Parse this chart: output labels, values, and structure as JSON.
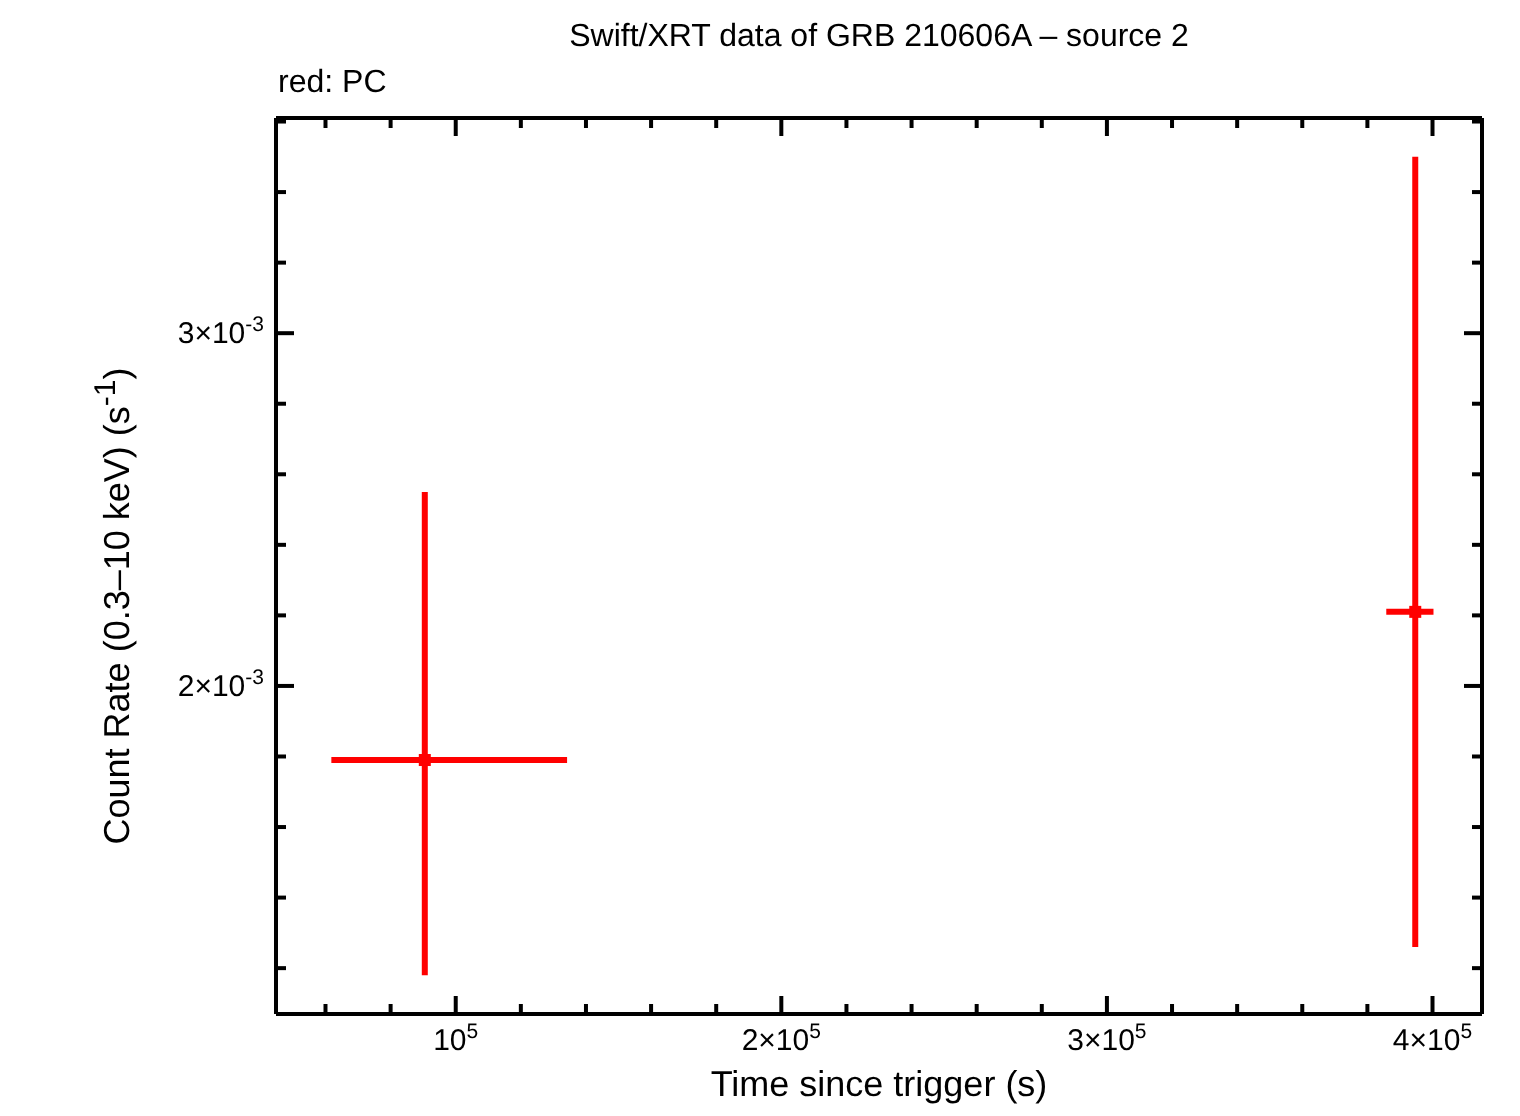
{
  "chart_data": {
    "type": "scatter",
    "title": "Swift/XRT data of GRB 210606A – source 2",
    "xlabel": "Time since trigger (s)",
    "ylabel": "Count Rate (0.3–10 keV) (s$^{-1}$)",
    "annotations": [
      "red: PC"
    ],
    "x": [
      90500,
      394700
    ],
    "series": [
      {
        "color": "#ff0000",
        "values": [
          0.00179,
          0.00221
        ],
        "errors": [
          [
            0.00118,
            0.00255
          ],
          [
            0.00126,
            0.0035
          ]
        ],
        "xerrors": [
          [
            61800,
            134200
          ],
          [
            385800,
            400300
          ]
        ]
      }
    ],
    "marker": "square",
    "xlim": [
      44800,
      415200
    ],
    "xticks": [
      {
        "value": 60000,
        "label": null
      },
      {
        "value": 80000,
        "label": null
      },
      {
        "value": 100000,
        "label": "10$^{5}$"
      },
      {
        "value": 120000,
        "label": null
      },
      {
        "value": 140000,
        "label": null
      },
      {
        "value": 160000,
        "label": null
      },
      {
        "value": 180000,
        "label": null
      },
      {
        "value": 200000,
        "label": "2×10$^{5}$"
      },
      {
        "value": 220000,
        "label": null
      },
      {
        "value": 240000,
        "label": null
      },
      {
        "value": 260000,
        "label": null
      },
      {
        "value": 280000,
        "label": null
      },
      {
        "value": 300000,
        "label": "3×10$^{5}$"
      },
      {
        "value": 320000,
        "label": null
      },
      {
        "value": 340000,
        "label": null
      },
      {
        "value": 360000,
        "label": null
      },
      {
        "value": 380000,
        "label": null
      },
      {
        "value": 400000,
        "label": "4×10$^{5}$"
      }
    ],
    "ylim": [
      0.00107,
      0.00361
    ],
    "yticks": [
      {
        "value": 0.0012,
        "label": null
      },
      {
        "value": 0.0014,
        "label": null
      },
      {
        "value": 0.0016,
        "label": null
      },
      {
        "value": 0.0018,
        "label": null
      },
      {
        "value": 0.002,
        "label": "2×10$^{-3}$"
      },
      {
        "value": 0.0022,
        "label": null
      },
      {
        "value": 0.0024,
        "label": null
      },
      {
        "value": 0.0026,
        "label": null
      },
      {
        "value": 0.0028,
        "label": null
      },
      {
        "value": 0.003,
        "label": "3×10$^{-3}$"
      },
      {
        "value": 0.0032,
        "label": null
      },
      {
        "value": 0.0034,
        "label": null
      },
      {
        "value": 0.0036,
        "label": null
      }
    ]
  }
}
